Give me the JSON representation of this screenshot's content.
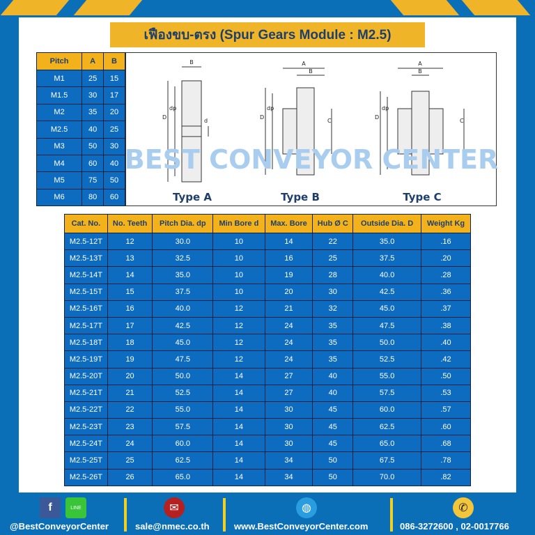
{
  "title": "เฟืองขบ-ตรง (Spur Gears Module : M2.5)",
  "pitch_table": {
    "headers": [
      "Pitch",
      "A",
      "B"
    ],
    "rows": [
      [
        "M1",
        "25",
        "15"
      ],
      [
        "M1.5",
        "30",
        "17"
      ],
      [
        "M2",
        "35",
        "20"
      ],
      [
        "M2.5",
        "40",
        "25"
      ],
      [
        "M3",
        "50",
        "30"
      ],
      [
        "M4",
        "60",
        "40"
      ],
      [
        "M5",
        "75",
        "50"
      ],
      [
        "M6",
        "80",
        "60"
      ]
    ]
  },
  "diagram": {
    "types": [
      "Type A",
      "Type B",
      "Type C"
    ],
    "watermark": "BEST CONVEYOR CENTER",
    "labels": {
      "a": "A",
      "b": "B",
      "d_outer": "D",
      "dp": "dp",
      "d": "d",
      "c": "C"
    }
  },
  "main_table": {
    "headers": [
      "Cat. No.",
      "No. Teeth",
      "Pitch Dia. dp",
      "Min Bore d",
      "Max. Bore",
      "Hub Ø C",
      "Outside Dia. D",
      "Weight Kg"
    ],
    "rows": [
      [
        "M2.5-12T",
        "12",
        "30.0",
        "10",
        "14",
        "22",
        "35.0",
        ".16"
      ],
      [
        "M2.5-13T",
        "13",
        "32.5",
        "10",
        "16",
        "25",
        "37.5",
        ".20"
      ],
      [
        "M2.5-14T",
        "14",
        "35.0",
        "10",
        "19",
        "28",
        "40.0",
        ".28"
      ],
      [
        "M2.5-15T",
        "15",
        "37.5",
        "10",
        "20",
        "30",
        "42.5",
        ".36"
      ],
      [
        "M2.5-16T",
        "16",
        "40.0",
        "12",
        "21",
        "32",
        "45.0",
        ".37"
      ],
      [
        "M2.5-17T",
        "17",
        "42.5",
        "12",
        "24",
        "35",
        "47.5",
        ".38"
      ],
      [
        "M2.5-18T",
        "18",
        "45.0",
        "12",
        "24",
        "35",
        "50.0",
        ".40"
      ],
      [
        "M2.5-19T",
        "19",
        "47.5",
        "12",
        "24",
        "35",
        "52.5",
        ".42"
      ],
      [
        "M2.5-20T",
        "20",
        "50.0",
        "14",
        "27",
        "40",
        "55.0",
        ".50"
      ],
      [
        "M2.5-21T",
        "21",
        "52.5",
        "14",
        "27",
        "40",
        "57.5",
        ".53"
      ],
      [
        "M2.5-22T",
        "22",
        "55.0",
        "14",
        "30",
        "45",
        "60.0",
        ".57"
      ],
      [
        "M2.5-23T",
        "23",
        "57.5",
        "14",
        "30",
        "45",
        "62.5",
        ".60"
      ],
      [
        "M2.5-24T",
        "24",
        "60.0",
        "14",
        "30",
        "45",
        "65.0",
        ".68"
      ],
      [
        "M2.5-25T",
        "25",
        "62.5",
        "14",
        "34",
        "50",
        "67.5",
        ".78"
      ],
      [
        "M2.5-26T",
        "26",
        "65.0",
        "14",
        "34",
        "50",
        "70.0",
        ".82"
      ]
    ]
  },
  "footer": {
    "facebook": "@BestConveyorCenter",
    "line_label": "LINE",
    "email": "sale@nmec.co.th",
    "website": "www.BestConveyorCenter.com",
    "phone": "086-3272600 , 02-0017766"
  },
  "colors": {
    "background": "#0b6fb8",
    "accent": "#f0b429",
    "cell": "#0d6cc0",
    "title_text": "#1e3f6a"
  }
}
